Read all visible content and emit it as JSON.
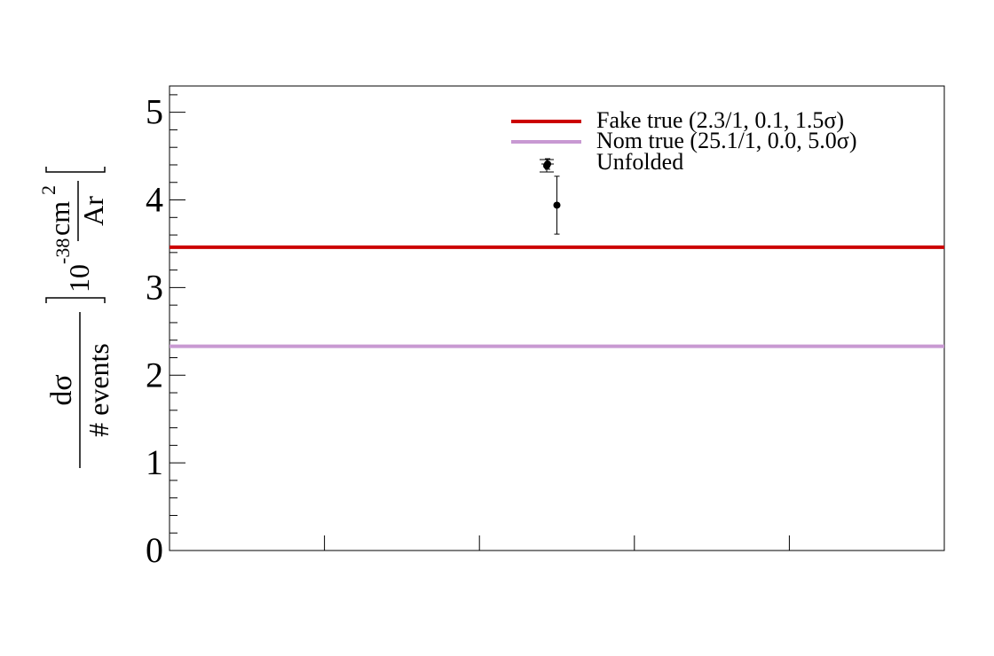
{
  "chart_data": {
    "type": "line",
    "title": "",
    "xlabel": "",
    "ylabel": {
      "numerator": "dσ",
      "denominator": "# events",
      "unit_prefix": "10",
      "unit_exponent": "-38",
      "unit_numerator": "cm",
      "unit_numerator_exponent": "2",
      "unit_denominator": "Ar"
    },
    "ylim": [
      0,
      5.3
    ],
    "xlim": [
      0,
      5
    ],
    "yticks": [
      "0",
      "1",
      "2",
      "3",
      "4",
      "5"
    ],
    "xticks_count": 4,
    "grid": false,
    "legend_placement": "top-right",
    "series": [
      {
        "name": "Fake true (2.3/1, 0.1, 1.5σ)",
        "kind": "hline",
        "y": 3.46,
        "color": "#cc0000"
      },
      {
        "name": "Nom true (25.1/1, 0.0, 5.0σ)",
        "kind": "hline",
        "y": 2.33,
        "color": "#c899d2"
      },
      {
        "name": "Unfolded",
        "kind": "points",
        "color": "#000000",
        "points": [
          {
            "x": 2.44,
            "y": 4.41,
            "yerr": 0.06,
            "xerr": 0.04
          },
          {
            "x": 2.5,
            "y": 3.94,
            "yerr": 0.33
          }
        ]
      }
    ]
  }
}
